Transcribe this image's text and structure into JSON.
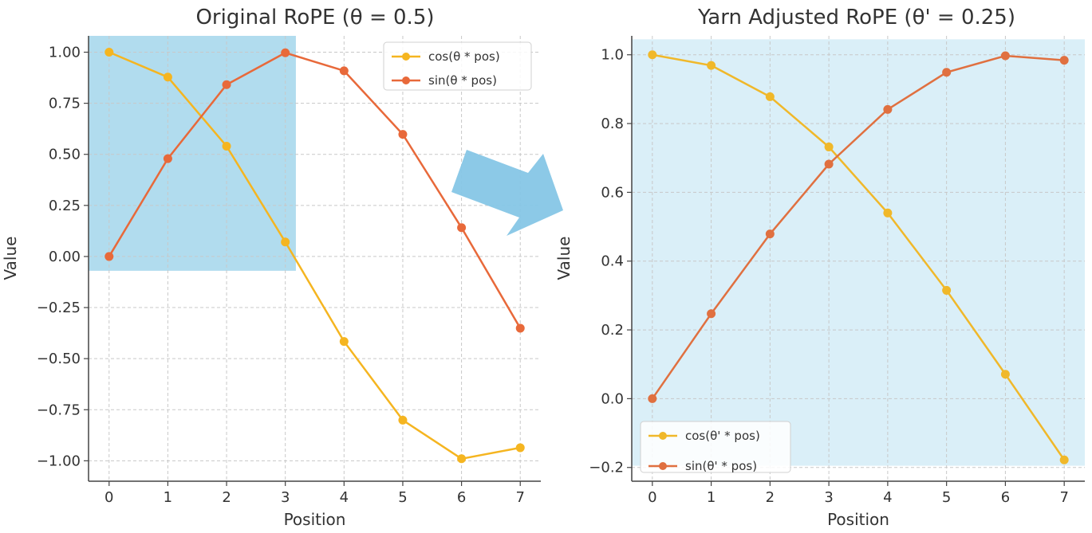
{
  "chart_data": [
    {
      "type": "line",
      "title": "Original RoPE (θ = 0.5)",
      "xlabel": "Position",
      "ylabel": "Value",
      "x": [
        0,
        1,
        2,
        3,
        4,
        5,
        6,
        7
      ],
      "xticks": [
        0,
        1,
        2,
        3,
        4,
        5,
        6,
        7
      ],
      "xtick_labels": [
        "0",
        "1",
        "2",
        "3",
        "4",
        "5",
        "6",
        "7"
      ],
      "xlim": [
        -0.35,
        7.35
      ],
      "ylim": [
        -1.1,
        1.08
      ],
      "yticks": [
        1.0,
        0.75,
        0.5,
        0.25,
        0.0,
        -0.25,
        -0.5,
        -0.75,
        -1.0
      ],
      "ytick_labels": [
        "1.00",
        "0.75",
        "0.50",
        "0.25",
        "0.00",
        "−0.25",
        "−0.50",
        "−0.75",
        "−1.00"
      ],
      "grid": true,
      "legend_position": "top-right",
      "series": [
        {
          "name": "cos(θ * pos)",
          "color": "#f5b520",
          "values": [
            1.0,
            0.878,
            0.54,
            0.071,
            -0.416,
            -0.801,
            -0.99,
            -0.936
          ]
        },
        {
          "name": "sin(θ * pos)",
          "color": "#e8693a",
          "values": [
            0.0,
            0.479,
            0.841,
            0.997,
            0.909,
            0.598,
            0.141,
            -0.351
          ]
        }
      ],
      "highlight": {
        "color": "#a8d8ec",
        "x_range": [
          -0.35,
          3.18
        ],
        "y_range": [
          -0.07,
          1.08
        ]
      }
    },
    {
      "type": "line",
      "title": "Yarn Adjusted RoPE (θ' = 0.25)",
      "xlabel": "Position",
      "ylabel": "Value",
      "x": [
        0,
        1,
        2,
        3,
        4,
        5,
        6,
        7
      ],
      "xticks": [
        0,
        1,
        2,
        3,
        4,
        5,
        6,
        7
      ],
      "xtick_labels": [
        "0",
        "1",
        "2",
        "3",
        "4",
        "5",
        "6",
        "7"
      ],
      "xlim": [
        -0.35,
        7.35
      ],
      "ylim": [
        -0.24,
        1.055
      ],
      "yticks": [
        1.0,
        0.8,
        0.6,
        0.4,
        0.2,
        0.0,
        -0.2
      ],
      "ytick_labels": [
        "1.0",
        "0.8",
        "0.6",
        "0.4",
        "0.2",
        "0.0",
        "−0.2"
      ],
      "grid": true,
      "legend_position": "bottom-left",
      "series": [
        {
          "name": "cos(θ' * pos)",
          "color": "#f0b82a",
          "values": [
            1.0,
            0.969,
            0.878,
            0.732,
            0.54,
            0.315,
            0.071,
            -0.178
          ]
        },
        {
          "name": "sin(θ' * pos)",
          "color": "#e07040",
          "values": [
            0.0,
            0.247,
            0.479,
            0.682,
            0.841,
            0.949,
            0.997,
            0.984
          ]
        }
      ],
      "highlight": {
        "color": "#d6edf7",
        "x_range": [
          -0.35,
          7.35
        ],
        "y_range": [
          -0.195,
          1.045
        ]
      }
    }
  ],
  "arrow": {
    "color": "#86c6e6",
    "direction": "right"
  }
}
